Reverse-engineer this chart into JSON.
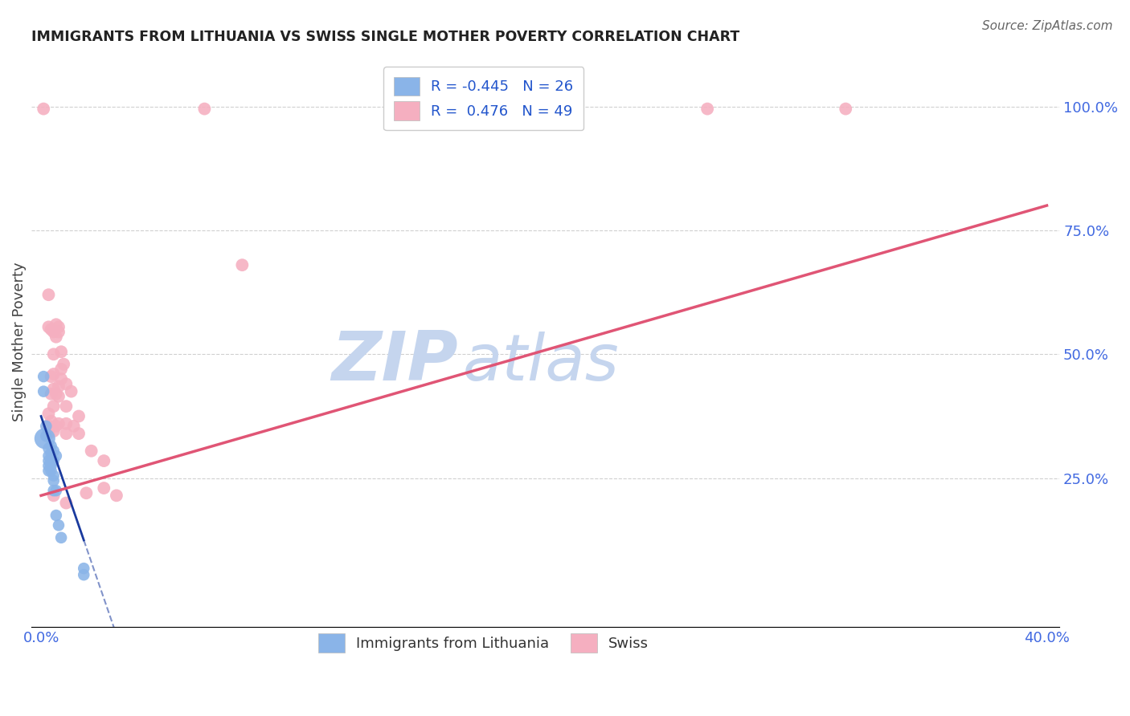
{
  "title": "IMMIGRANTS FROM LITHUANIA VS SWISS SINGLE MOTHER POVERTY CORRELATION CHART",
  "source": "Source: ZipAtlas.com",
  "xlabel_color": "#4169e1",
  "ylabel": "Single Mother Poverty",
  "right_ytick_labels": [
    "100.0%",
    "75.0%",
    "50.0%",
    "25.0%"
  ],
  "right_ytick_values": [
    1.0,
    0.75,
    0.5,
    0.25
  ],
  "xlim": [
    -0.004,
    0.405
  ],
  "ylim": [
    -0.05,
    1.1
  ],
  "legend_blue_label": "Immigrants from Lithuania",
  "legend_pink_label": "Swiss",
  "r_blue": -0.445,
  "n_blue": 26,
  "r_pink": 0.476,
  "n_pink": 49,
  "blue_color": "#8ab4e8",
  "pink_color": "#f5afc0",
  "trendline_blue_color": "#1a3a9e",
  "trendline_pink_color": "#e05575",
  "watermark_zip_color": "#c5d5ee",
  "watermark_atlas_color": "#c5d5ee",
  "background_color": "#ffffff",
  "grid_color": "#d0d0d0",
  "blue_points": [
    [
      0.001,
      0.455
    ],
    [
      0.001,
      0.425
    ],
    [
      0.002,
      0.355
    ],
    [
      0.002,
      0.335
    ],
    [
      0.003,
      0.31
    ],
    [
      0.003,
      0.295
    ],
    [
      0.003,
      0.285
    ],
    [
      0.003,
      0.275
    ],
    [
      0.003,
      0.265
    ],
    [
      0.004,
      0.315
    ],
    [
      0.004,
      0.3
    ],
    [
      0.004,
      0.285
    ],
    [
      0.004,
      0.275
    ],
    [
      0.004,
      0.265
    ],
    [
      0.005,
      0.305
    ],
    [
      0.005,
      0.285
    ],
    [
      0.005,
      0.255
    ],
    [
      0.005,
      0.245
    ],
    [
      0.005,
      0.225
    ],
    [
      0.006,
      0.295
    ],
    [
      0.006,
      0.225
    ],
    [
      0.006,
      0.175
    ],
    [
      0.007,
      0.155
    ],
    [
      0.008,
      0.13
    ],
    [
      0.017,
      0.068
    ],
    [
      0.017,
      0.055
    ]
  ],
  "pink_points": [
    [
      0.001,
      0.995
    ],
    [
      0.065,
      0.995
    ],
    [
      0.17,
      0.995
    ],
    [
      0.265,
      0.995
    ],
    [
      0.32,
      0.995
    ],
    [
      0.003,
      0.62
    ],
    [
      0.08,
      0.68
    ],
    [
      0.003,
      0.555
    ],
    [
      0.004,
      0.55
    ],
    [
      0.005,
      0.545
    ],
    [
      0.005,
      0.5
    ],
    [
      0.006,
      0.56
    ],
    [
      0.006,
      0.535
    ],
    [
      0.007,
      0.555
    ],
    [
      0.007,
      0.545
    ],
    [
      0.008,
      0.505
    ],
    [
      0.008,
      0.47
    ],
    [
      0.008,
      0.45
    ],
    [
      0.009,
      0.48
    ],
    [
      0.005,
      0.46
    ],
    [
      0.004,
      0.455
    ],
    [
      0.004,
      0.42
    ],
    [
      0.005,
      0.43
    ],
    [
      0.005,
      0.395
    ],
    [
      0.006,
      0.42
    ],
    [
      0.007,
      0.435
    ],
    [
      0.007,
      0.415
    ],
    [
      0.01,
      0.44
    ],
    [
      0.01,
      0.395
    ],
    [
      0.012,
      0.425
    ],
    [
      0.003,
      0.38
    ],
    [
      0.004,
      0.365
    ],
    [
      0.003,
      0.355
    ],
    [
      0.003,
      0.34
    ],
    [
      0.005,
      0.345
    ],
    [
      0.006,
      0.355
    ],
    [
      0.007,
      0.36
    ],
    [
      0.01,
      0.36
    ],
    [
      0.01,
      0.34
    ],
    [
      0.013,
      0.355
    ],
    [
      0.015,
      0.375
    ],
    [
      0.015,
      0.34
    ],
    [
      0.02,
      0.305
    ],
    [
      0.025,
      0.285
    ],
    [
      0.025,
      0.23
    ],
    [
      0.03,
      0.215
    ],
    [
      0.018,
      0.22
    ],
    [
      0.01,
      0.2
    ],
    [
      0.005,
      0.215
    ]
  ],
  "blue_trendline": [
    [
      0.0,
      0.375
    ],
    [
      0.017,
      0.125
    ]
  ],
  "pink_trendline": [
    [
      0.0,
      0.215
    ],
    [
      0.4,
      0.8
    ]
  ],
  "blue_large_point": [
    0.0015,
    0.33
  ],
  "blue_large_size": 350
}
